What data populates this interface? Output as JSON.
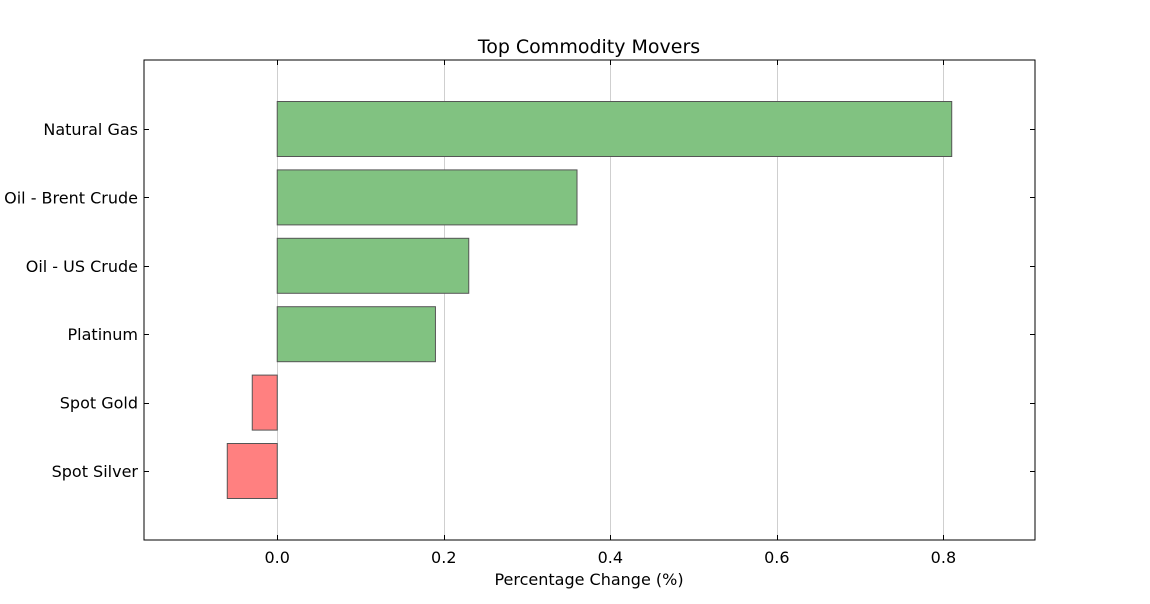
{
  "chart_data": {
    "type": "bar",
    "orientation": "horizontal",
    "title": "Top Commodity Movers",
    "xlabel": "Percentage Change (%)",
    "ylabel": "",
    "categories": [
      "Natural Gas",
      "Oil - Brent Crude",
      "Oil - US Crude",
      "Platinum",
      "Spot Gold",
      "Spot Silver"
    ],
    "values": [
      0.81,
      0.36,
      0.23,
      0.19,
      -0.03,
      -0.06
    ],
    "xlim": [
      -0.16,
      0.91
    ],
    "xticks": [
      0.0,
      0.2,
      0.4,
      0.6,
      0.8
    ],
    "xtick_labels": [
      "0.0",
      "0.2",
      "0.4",
      "0.6",
      "0.8"
    ],
    "grid": "vertical",
    "legend": "none",
    "colors": {
      "positive": "#81c281",
      "negative": "#ff8080",
      "bar_edge": "#555555",
      "grid": "#cfcfcf",
      "axis": "#000000"
    }
  }
}
